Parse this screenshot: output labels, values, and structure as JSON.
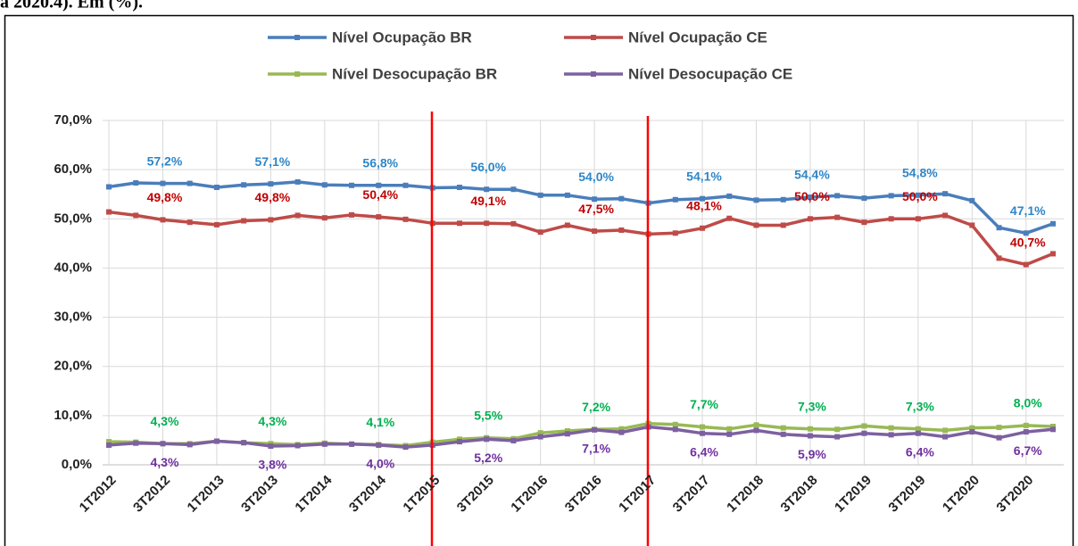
{
  "caption": "a 2020.4). Em (%).",
  "chart_data": {
    "type": "line",
    "categories": [
      "1T2012",
      null,
      "3T2012",
      null,
      "1T2013",
      null,
      "3T2013",
      null,
      "1T2014",
      null,
      "3T2014",
      null,
      "1T2015",
      null,
      "3T2015",
      null,
      "1T2016",
      null,
      "3T2016",
      null,
      "1T2017",
      null,
      "3T2017",
      null,
      "1T2018",
      null,
      "3T2018",
      null,
      "1T2019",
      null,
      "3T2019",
      null,
      "1T2020",
      null,
      "3T2020",
      null
    ],
    "ylim": [
      0,
      70
    ],
    "yticks": [
      {
        "value": 0,
        "label": "0,0%"
      },
      {
        "value": 10,
        "label": "10,0%"
      },
      {
        "value": 20,
        "label": "20,0%"
      },
      {
        "value": 30,
        "label": "30,0%"
      },
      {
        "value": 40,
        "label": "40,0%"
      },
      {
        "value": 50,
        "label": "50,0%"
      },
      {
        "value": 60,
        "label": "60,0%"
      },
      {
        "value": 70,
        "label": "70,0%"
      }
    ],
    "grid": true,
    "series": [
      {
        "name": "Nível Ocupação BR",
        "color": "#4a7ebb",
        "label_color": "#2e86c8",
        "label_position": "above",
        "values": [
          56.5,
          57.3,
          57.2,
          57.2,
          56.4,
          56.9,
          57.1,
          57.5,
          56.9,
          56.8,
          56.8,
          56.8,
          56.3,
          56.4,
          56.0,
          56.0,
          54.8,
          54.8,
          54.0,
          54.1,
          53.2,
          53.9,
          54.1,
          54.6,
          53.8,
          53.9,
          54.4,
          54.7,
          54.2,
          54.7,
          54.8,
          55.1,
          53.7,
          48.2,
          47.1,
          49.0
        ],
        "value_labels": [
          null,
          null,
          "57,2%",
          null,
          null,
          null,
          "57,1%",
          null,
          null,
          null,
          "56,8%",
          null,
          null,
          null,
          "56,0%",
          null,
          null,
          null,
          "54,0%",
          null,
          null,
          null,
          "54,1%",
          null,
          null,
          null,
          "54,4%",
          null,
          null,
          null,
          "54,8%",
          null,
          null,
          null,
          "47,1%",
          null
        ]
      },
      {
        "name": "Nível Ocupação CE",
        "color": "#be4b48",
        "label_color": "#c00000",
        "label_position": "above",
        "values": [
          51.4,
          50.7,
          49.8,
          49.3,
          48.8,
          49.6,
          49.8,
          50.7,
          50.2,
          50.8,
          50.4,
          49.9,
          49.1,
          49.1,
          49.1,
          49.0,
          47.3,
          48.7,
          47.5,
          47.7,
          46.9,
          47.1,
          48.1,
          50.1,
          48.7,
          48.7,
          50.0,
          50.3,
          49.3,
          50.0,
          50.0,
          50.7,
          48.7,
          42.0,
          40.7,
          42.9
        ],
        "value_labels": [
          null,
          null,
          "49,8%",
          null,
          null,
          null,
          "49,8%",
          null,
          null,
          null,
          "50,4%",
          null,
          null,
          null,
          "49,1%",
          null,
          null,
          null,
          "47,5%",
          null,
          null,
          null,
          "48,1%",
          null,
          null,
          null,
          "50,0%",
          null,
          null,
          null,
          "50,0%",
          null,
          null,
          null,
          "40,7%",
          null
        ]
      },
      {
        "name": "Nível Desocupação BR",
        "color": "#98b954",
        "label_color": "#00b050",
        "label_position": "above",
        "values": [
          4.7,
          4.6,
          4.3,
          4.3,
          4.8,
          4.5,
          4.3,
          4.1,
          4.4,
          4.2,
          4.1,
          3.9,
          4.6,
          5.2,
          5.5,
          5.3,
          6.5,
          6.9,
          7.2,
          7.3,
          8.4,
          8.2,
          7.7,
          7.3,
          8.1,
          7.5,
          7.3,
          7.2,
          7.9,
          7.5,
          7.3,
          7.0,
          7.5,
          7.6,
          8.0,
          7.8
        ],
        "value_labels": [
          null,
          null,
          "4,3%",
          null,
          null,
          null,
          "4,3%",
          null,
          null,
          null,
          "4,1%",
          null,
          null,
          null,
          "5,5%",
          null,
          null,
          null,
          "7,2%",
          null,
          null,
          null,
          "7,7%",
          null,
          null,
          null,
          "7,3%",
          null,
          null,
          null,
          "7,3%",
          null,
          null,
          null,
          "8,0%",
          null
        ]
      },
      {
        "name": "Nível Desocupação CE",
        "color": "#7d60a0",
        "label_color": "#7030a0",
        "label_position": "below",
        "values": [
          4.0,
          4.4,
          4.3,
          4.1,
          4.8,
          4.5,
          3.8,
          3.9,
          4.2,
          4.2,
          4.0,
          3.6,
          4.0,
          4.7,
          5.2,
          4.9,
          5.7,
          6.3,
          7.1,
          6.6,
          7.7,
          7.2,
          6.4,
          6.2,
          7.0,
          6.2,
          5.9,
          5.7,
          6.4,
          6.1,
          6.4,
          5.7,
          6.7,
          5.5,
          6.7,
          7.2
        ],
        "value_labels": [
          null,
          null,
          "4,3%",
          null,
          null,
          null,
          "3,8%",
          null,
          null,
          null,
          "4,0%",
          null,
          null,
          null,
          "5,2%",
          null,
          null,
          null,
          "7,1%",
          null,
          null,
          null,
          "6,4%",
          null,
          null,
          null,
          "5,9%",
          null,
          null,
          null,
          "6,4%",
          null,
          null,
          null,
          "6,7%",
          null
        ]
      }
    ]
  }
}
